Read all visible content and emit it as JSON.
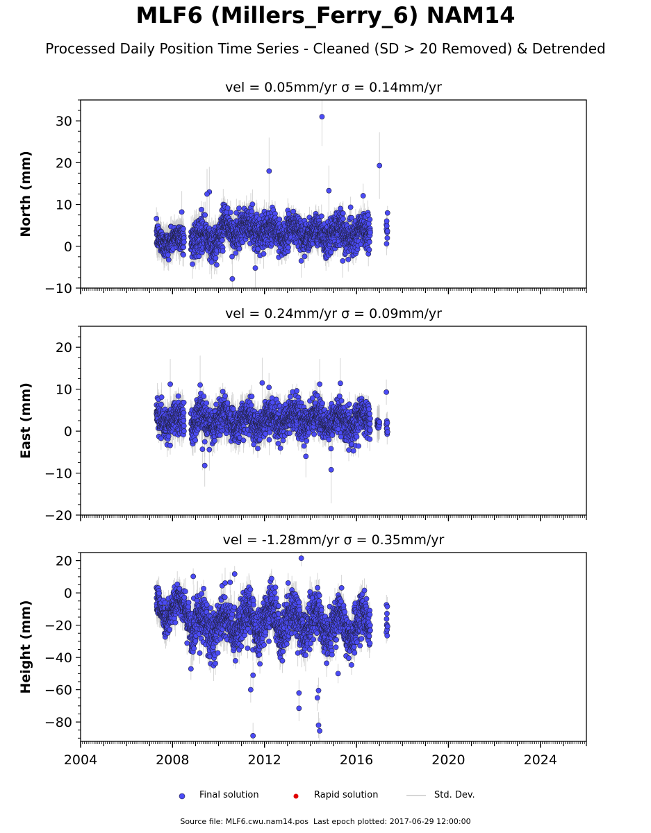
{
  "title": "MLF6 (Millers_Ferry_6) NAM14",
  "subtitle": "Processed Daily Position Time Series - Cleaned (SD > 20 Removed) & Detrended",
  "footer": {
    "source_label": "Source file: MLF6.cwu.nam14.pos",
    "last_epoch_label": "Last epoch plotted: 2017-06-29 12:00:00"
  },
  "colors": {
    "final": "#4b4bf5",
    "rapid": "#e00000",
    "stddev": "#c8c8c8",
    "marker_edge": "#222244"
  },
  "legend": [
    {
      "label": "Final solution",
      "color": "#4b4bf5",
      "kind": "dot"
    },
    {
      "label": "Rapid solution",
      "color": "#e00000",
      "kind": "dot"
    },
    {
      "label": "Std. Dev.",
      "color": "#c8c8c8",
      "kind": "line"
    }
  ],
  "chart_data": [
    {
      "type": "scatter",
      "panel": "north",
      "title": "vel = 0.05mm/yr   σ = 0.14mm/yr",
      "ylabel": "North (mm)",
      "xlim": [
        2004,
        2026
      ],
      "ylim": [
        -10,
        35
      ],
      "yticks": [
        -10,
        0,
        10,
        20,
        30
      ],
      "ytick_labels": [
        "−10",
        "0",
        "10",
        "20",
        "30"
      ],
      "xticks": [
        2004,
        2008,
        2012,
        2016,
        2020,
        2024
      ],
      "xtick_labels": [],
      "grid": false,
      "cloud_segments": [
        {
          "start": 2007.3,
          "end": 2008.5,
          "center": 1.5,
          "amplitude": 1.0,
          "spread": 1.5,
          "error": 2.5
        },
        {
          "start": 2008.8,
          "end": 2010.2,
          "center": 2.0,
          "amplitude": 1.5,
          "spread": 2.0,
          "error": 2.5
        },
        {
          "start": 2010.2,
          "end": 2012.0,
          "center": 4.0,
          "amplitude": 1.5,
          "spread": 2.0,
          "error": 2.5
        },
        {
          "start": 2012.0,
          "end": 2014.0,
          "center": 3.5,
          "amplitude": 1.5,
          "spread": 2.0,
          "error": 2.0
        },
        {
          "start": 2014.0,
          "end": 2016.6,
          "center": 3.0,
          "amplitude": 1.5,
          "spread": 2.0,
          "error": 2.0
        },
        {
          "start": 2017.3,
          "end": 2017.35,
          "center": 4.0,
          "amplitude": 0.0,
          "spread": 1.5,
          "error": 2.0
        }
      ],
      "outliers": [
        {
          "x": 2014.5,
          "y": 31,
          "err": 7
        },
        {
          "x": 2017.0,
          "y": 19.3,
          "err": 8
        },
        {
          "x": 2012.2,
          "y": 18,
          "err": 8
        },
        {
          "x": 2014.8,
          "y": 13.3,
          "err": 6
        },
        {
          "x": 2009.6,
          "y": 13,
          "err": 6
        },
        {
          "x": 2009.5,
          "y": 12.5,
          "err": 6
        },
        {
          "x": 2008.4,
          "y": 8.2,
          "err": 5
        },
        {
          "x": 2010.6,
          "y": -7.8,
          "err": 5
        },
        {
          "x": 2011.6,
          "y": -5.2,
          "err": 5
        },
        {
          "x": 2013.6,
          "y": -3.5,
          "err": 4
        },
        {
          "x": 2015.4,
          "y": -3.5,
          "err": 4
        },
        {
          "x": 2009.7,
          "y": -3.8,
          "err": 4
        }
      ]
    },
    {
      "type": "scatter",
      "panel": "east",
      "title": "vel = 0.24mm/yr   σ = 0.09mm/yr",
      "ylabel": "East (mm)",
      "xlim": [
        2004,
        2026
      ],
      "ylim": [
        -20,
        25
      ],
      "yticks": [
        -20,
        -10,
        0,
        10,
        20
      ],
      "ytick_labels": [
        "−20",
        "−10",
        "0",
        "10",
        "20"
      ],
      "xticks": [
        2004,
        2008,
        2012,
        2016,
        2020,
        2024
      ],
      "xtick_labels": [],
      "grid": false,
      "cloud_segments": [
        {
          "start": 2007.3,
          "end": 2008.5,
          "center": 2.5,
          "amplitude": 1.0,
          "spread": 2.0,
          "error": 2.5
        },
        {
          "start": 2008.8,
          "end": 2010.5,
          "center": 2.5,
          "amplitude": 1.5,
          "spread": 2.0,
          "error": 2.5
        },
        {
          "start": 2010.5,
          "end": 2012.5,
          "center": 2.5,
          "amplitude": 1.5,
          "spread": 2.0,
          "error": 2.5
        },
        {
          "start": 2012.5,
          "end": 2014.5,
          "center": 3.0,
          "amplitude": 1.5,
          "spread": 2.0,
          "error": 2.0
        },
        {
          "start": 2014.5,
          "end": 2016.6,
          "center": 2.5,
          "amplitude": 1.5,
          "spread": 2.0,
          "error": 2.0
        },
        {
          "start": 2016.9,
          "end": 2017.0,
          "center": 1.7,
          "amplitude": 0.0,
          "spread": 0.5,
          "error": 3.0
        },
        {
          "start": 2017.3,
          "end": 2017.35,
          "center": 1.0,
          "amplitude": 0.0,
          "spread": 1.2,
          "error": 2.0
        }
      ],
      "outliers": [
        {
          "x": 2007.9,
          "y": 11.2,
          "err": 6
        },
        {
          "x": 2009.2,
          "y": 11.0,
          "err": 7
        },
        {
          "x": 2011.9,
          "y": 11.5,
          "err": 6
        },
        {
          "x": 2014.4,
          "y": 11.2,
          "err": 6
        },
        {
          "x": 2015.3,
          "y": 11.4,
          "err": 6
        },
        {
          "x": 2017.3,
          "y": 9.3,
          "err": 3
        },
        {
          "x": 2009.4,
          "y": -8.2,
          "err": 5
        },
        {
          "x": 2014.9,
          "y": -9.2,
          "err": 8
        },
        {
          "x": 2013.8,
          "y": -6.0,
          "err": 5
        },
        {
          "x": 2009.3,
          "y": -4.3,
          "err": 5
        },
        {
          "x": 2009.6,
          "y": -4.4,
          "err": 5
        }
      ]
    },
    {
      "type": "scatter",
      "panel": "height",
      "title": "vel = -1.28mm/yr   σ = 0.35mm/yr",
      "ylabel": "Height (mm)",
      "xlim": [
        2004,
        2026
      ],
      "ylim": [
        -92,
        25
      ],
      "yticks": [
        -80,
        -60,
        -40,
        -20,
        0,
        20
      ],
      "ytick_labels": [
        "−80",
        "−60",
        "−40",
        "−20",
        "0",
        "20"
      ],
      "xticks": [
        2004,
        2008,
        2012,
        2016,
        2020,
        2024
      ],
      "xtick_labels": [
        "2004",
        "2008",
        "2012",
        "2016",
        "2020",
        "2024"
      ],
      "grid": false,
      "cloud_segments": [
        {
          "start": 2007.3,
          "end": 2008.8,
          "center": -10,
          "amplitude": 6,
          "spread": 5,
          "error": 6
        },
        {
          "start": 2008.8,
          "end": 2010.5,
          "center": -20,
          "amplitude": 8,
          "spread": 7,
          "error": 7
        },
        {
          "start": 2010.5,
          "end": 2012.5,
          "center": -17,
          "amplitude": 8,
          "spread": 7,
          "error": 7
        },
        {
          "start": 2012.5,
          "end": 2014.5,
          "center": -18,
          "amplitude": 7,
          "spread": 7,
          "error": 7
        },
        {
          "start": 2014.5,
          "end": 2016.6,
          "center": -20,
          "amplitude": 8,
          "spread": 6,
          "error": 6
        },
        {
          "start": 2017.3,
          "end": 2017.35,
          "center": -20,
          "amplitude": 0,
          "spread": 5,
          "error": 5
        }
      ],
      "outliers": [
        {
          "x": 2011.5,
          "y": -88.5,
          "err": 8
        },
        {
          "x": 2014.4,
          "y": -85.5,
          "err": 8
        },
        {
          "x": 2014.35,
          "y": -82,
          "err": 8
        },
        {
          "x": 2013.5,
          "y": -71.5,
          "err": 8
        },
        {
          "x": 2013.5,
          "y": -62,
          "err": 8
        },
        {
          "x": 2014.3,
          "y": -65,
          "err": 8
        },
        {
          "x": 2014.35,
          "y": -60.5,
          "err": 8
        },
        {
          "x": 2011.4,
          "y": -60,
          "err": 8
        },
        {
          "x": 2011.5,
          "y": -51,
          "err": 8
        },
        {
          "x": 2011.8,
          "y": -44,
          "err": 6
        },
        {
          "x": 2013.6,
          "y": 21.5,
          "err": 5
        },
        {
          "x": 2008.9,
          "y": 10.2,
          "err": 5
        },
        {
          "x": 2010.7,
          "y": 11.7,
          "err": 5
        },
        {
          "x": 2015.2,
          "y": -50,
          "err": 6
        }
      ]
    }
  ]
}
